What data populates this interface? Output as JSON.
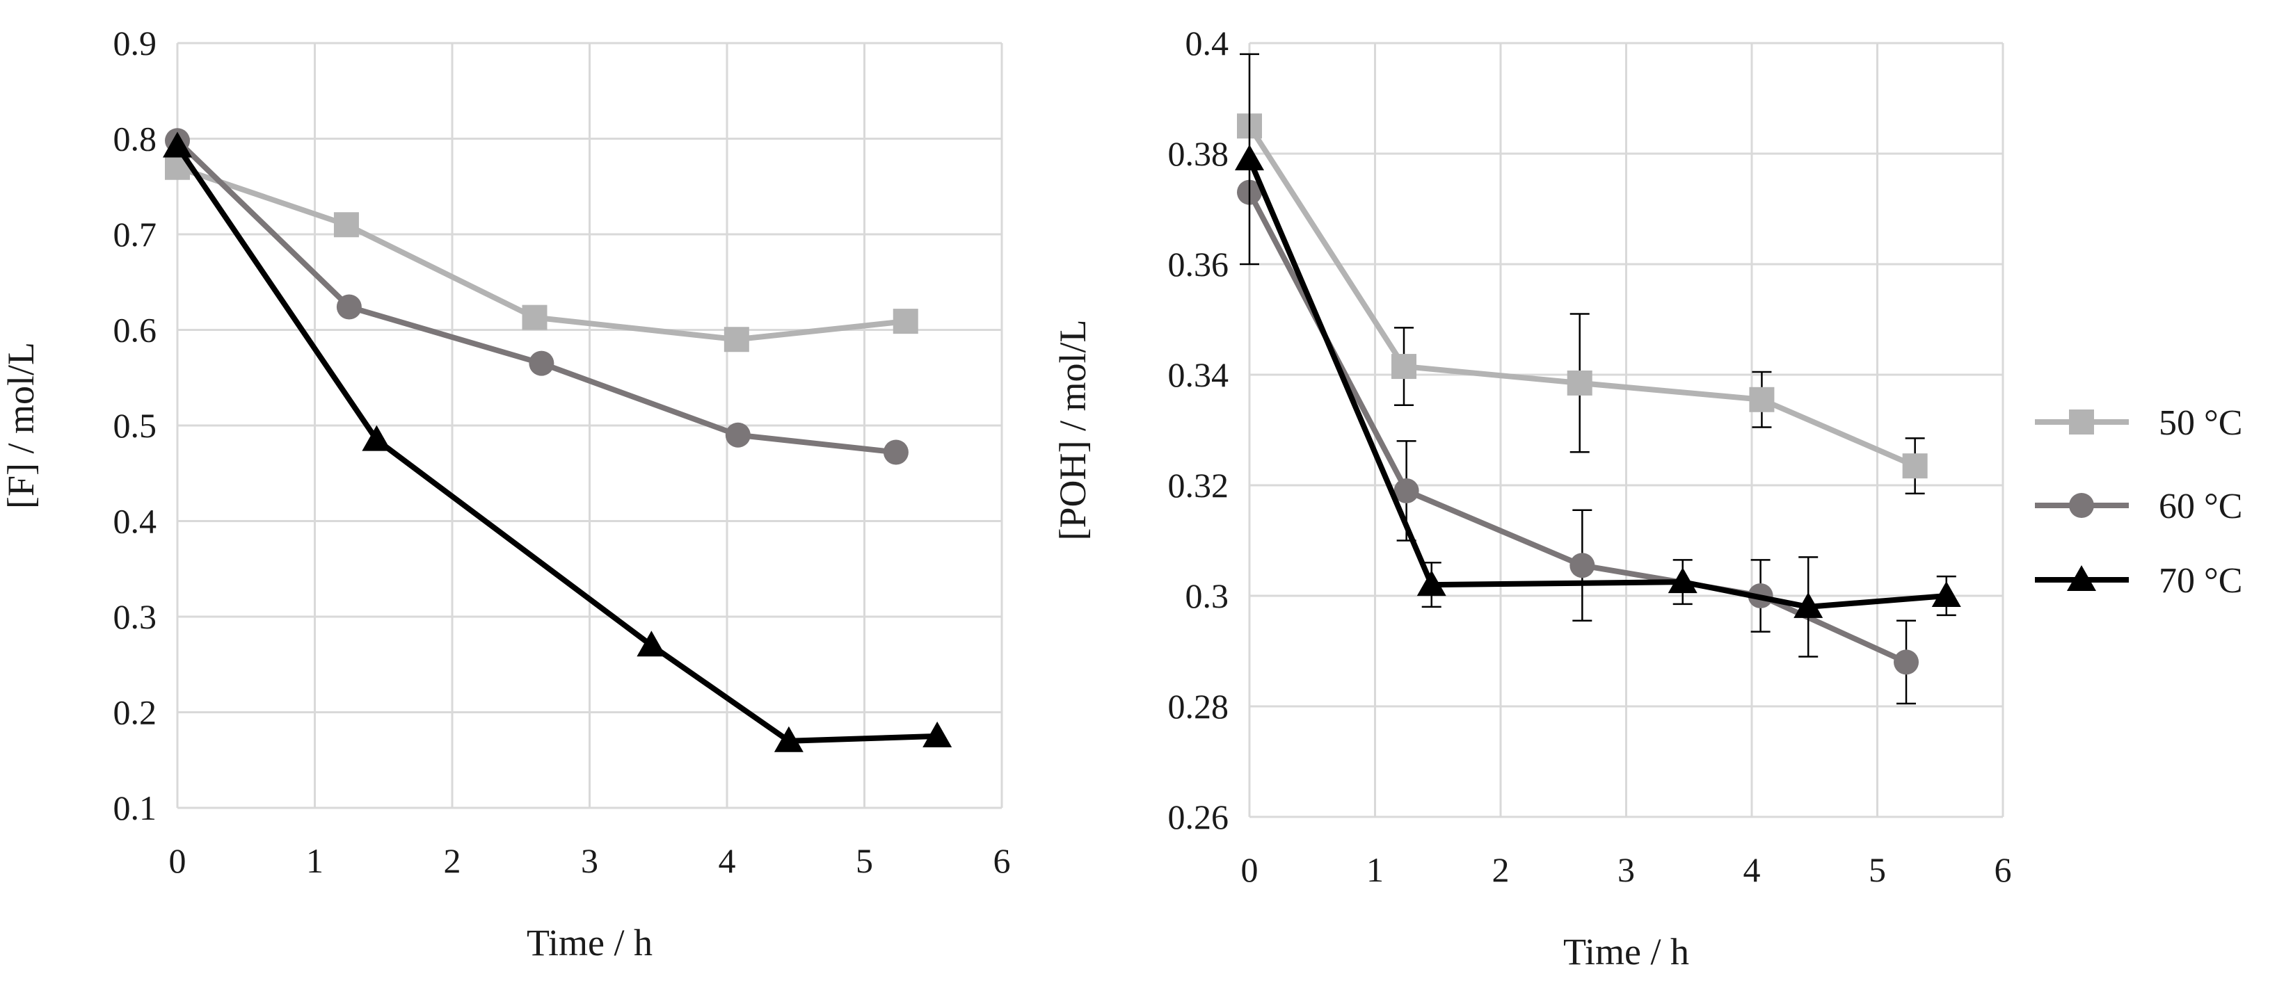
{
  "colors": {
    "s50": "#b3b3b3",
    "s60": "#7b7678",
    "s70": "#000000",
    "grid": "#d9d9d9",
    "error_bar": "#000000"
  },
  "legend": {
    "items": [
      {
        "label": "50 °C",
        "marker": "square",
        "color": "#b3b3b3"
      },
      {
        "label": "60 °C",
        "marker": "circle",
        "color": "#7b7678"
      },
      {
        "label": "70 °C",
        "marker": "triangle",
        "color": "#000000"
      }
    ]
  },
  "chart_data": [
    {
      "type": "line",
      "title": "",
      "xlabel": "Time / h",
      "ylabel": "[F] / mol/L",
      "xlim": [
        0,
        6
      ],
      "ylim": [
        0.1,
        0.9
      ],
      "x_ticks": [
        0,
        1,
        2,
        3,
        4,
        5,
        6
      ],
      "y_ticks": [
        0.1,
        0.2,
        0.3,
        0.4,
        0.5,
        0.6,
        0.7,
        0.8,
        0.9
      ],
      "x_tick_labels": [
        "0",
        "1",
        "2",
        "3",
        "4",
        "5",
        "6"
      ],
      "y_tick_labels": [
        "0.1",
        "0.2",
        "0.3",
        "0.4",
        "0.5",
        "0.6",
        "0.7",
        "0.8",
        "0.9"
      ],
      "grid": true,
      "series": [
        {
          "name": "50 °C",
          "x": [
            0,
            1.23,
            2.6,
            4.07,
            5.3
          ],
          "y": [
            0.77,
            0.71,
            0.613,
            0.59,
            0.609
          ]
        },
        {
          "name": "60 °C",
          "x": [
            0,
            1.25,
            2.65,
            4.08,
            5.23
          ],
          "y": [
            0.798,
            0.624,
            0.565,
            0.49,
            0.472
          ]
        },
        {
          "name": "70 °C",
          "x": [
            0,
            1.45,
            3.45,
            4.45,
            5.53
          ],
          "y": [
            0.792,
            0.485,
            0.27,
            0.17,
            0.175
          ]
        }
      ]
    },
    {
      "type": "line",
      "title": "",
      "xlabel": "Time / h",
      "ylabel": "[POH] / mol/L",
      "xlim": [
        0,
        6
      ],
      "ylim": [
        0.26,
        0.4
      ],
      "x_ticks": [
        0,
        1,
        2,
        3,
        4,
        5,
        6
      ],
      "y_ticks": [
        0.26,
        0.28,
        0.3,
        0.32,
        0.34,
        0.36,
        0.38,
        0.4
      ],
      "x_tick_labels": [
        "0",
        "1",
        "2",
        "3",
        "4",
        "5",
        "6"
      ],
      "y_tick_labels": [
        "0.26",
        "0.28",
        "0.3",
        "0.32",
        "0.34",
        "0.36",
        "0.38",
        "0.4"
      ],
      "grid": true,
      "legend_position": "right",
      "series": [
        {
          "name": "50 °C",
          "x": [
            0,
            1.23,
            2.63,
            4.08,
            5.3
          ],
          "y": [
            0.385,
            0.3415,
            0.3385,
            0.3355,
            0.3235
          ],
          "err": [
            0,
            0.007,
            0.0125,
            0.005,
            0.005
          ]
        },
        {
          "name": "60 °C",
          "x": [
            0,
            1.25,
            2.65,
            4.07,
            5.23
          ],
          "y": [
            0.373,
            0.319,
            0.3055,
            0.3,
            0.288
          ],
          "err": [
            0,
            0.009,
            0.01,
            0.0065,
            0.0075
          ]
        },
        {
          "name": "70 °C",
          "x": [
            0,
            1.45,
            3.45,
            4.45,
            5.55
          ],
          "y": [
            0.379,
            0.302,
            0.3025,
            0.298,
            0.3
          ],
          "err": [
            0.019,
            0.004,
            0.004,
            0.009,
            0.0035
          ]
        }
      ]
    }
  ]
}
